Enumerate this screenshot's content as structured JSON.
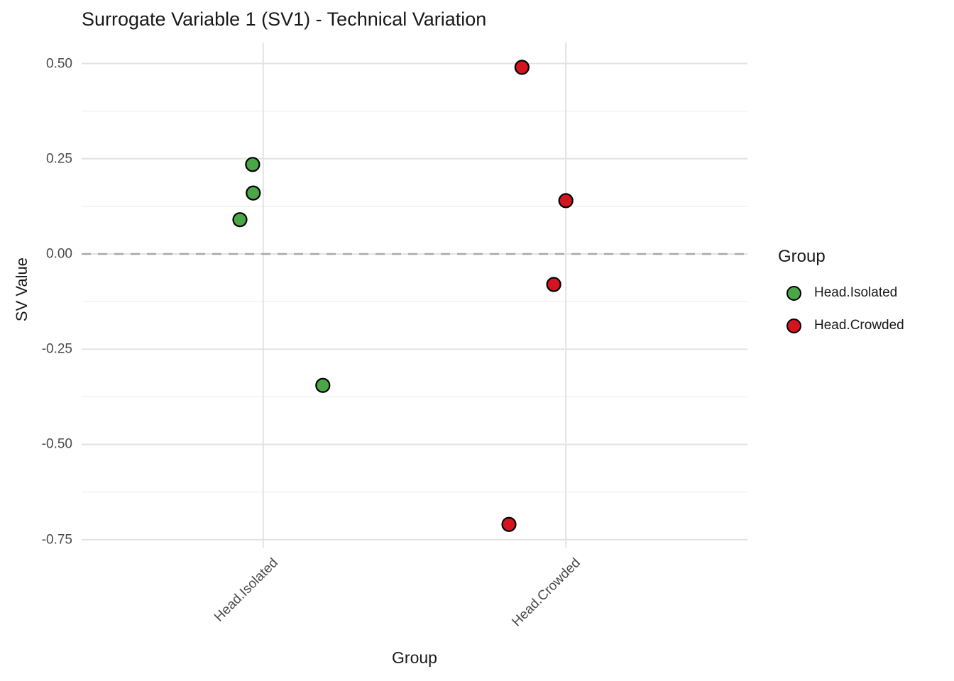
{
  "chart_data": {
    "type": "scatter",
    "title": "Surrogate Variable 1 (SV1) - Technical Variation",
    "xlabel": "Group",
    "ylabel": "SV Value",
    "categories": [
      "Head.Isolated",
      "Head.Crowded"
    ],
    "y_ticks": [
      0.5,
      0.25,
      0.0,
      -0.25,
      -0.5,
      -0.75
    ],
    "y_tick_labels": [
      "0.50",
      "0.25",
      "0.00",
      "-0.25",
      "-0.50",
      "-0.75"
    ],
    "ylim": [
      -0.771,
      0.555
    ],
    "grid": "major+minor, no axis lines (theme_minimal)",
    "reference_line": {
      "y": 0.0,
      "style": "dashed",
      "color": "#a8a8a8"
    },
    "legend": {
      "title": "Group",
      "position": "right",
      "entries": [
        {
          "label": "Head.Isolated",
          "color": "#4BA647"
        },
        {
          "label": "Head.Crowded",
          "color": "#D41520"
        }
      ]
    },
    "series": [
      {
        "name": "Head.Isolated",
        "color": "#4BA647",
        "values": [
          0.235,
          0.16,
          0.09,
          -0.345
        ],
        "points": [
          {
            "x_jitter": -0.035,
            "y": 0.235
          },
          {
            "x_jitter": -0.033,
            "y": 0.16
          },
          {
            "x_jitter": -0.077,
            "y": 0.09
          },
          {
            "x_jitter": 0.197,
            "y": -0.345
          }
        ]
      },
      {
        "name": "Head.Crowded",
        "color": "#D41520",
        "values": [
          0.49,
          0.14,
          -0.08,
          -0.71
        ],
        "points": [
          {
            "x_jitter": -0.145,
            "y": 0.49
          },
          {
            "x_jitter": 0.0,
            "y": 0.14
          },
          {
            "x_jitter": -0.04,
            "y": -0.08
          },
          {
            "x_jitter": -0.188,
            "y": -0.71
          }
        ]
      }
    ],
    "style": {
      "point_stroke": "#000000",
      "grid_major_color": "#e3e3e3",
      "grid_minor_color": "#efefef",
      "text_color": "#191919",
      "tick_label_color": "#4a4a4a",
      "background": "#ffffff"
    }
  }
}
